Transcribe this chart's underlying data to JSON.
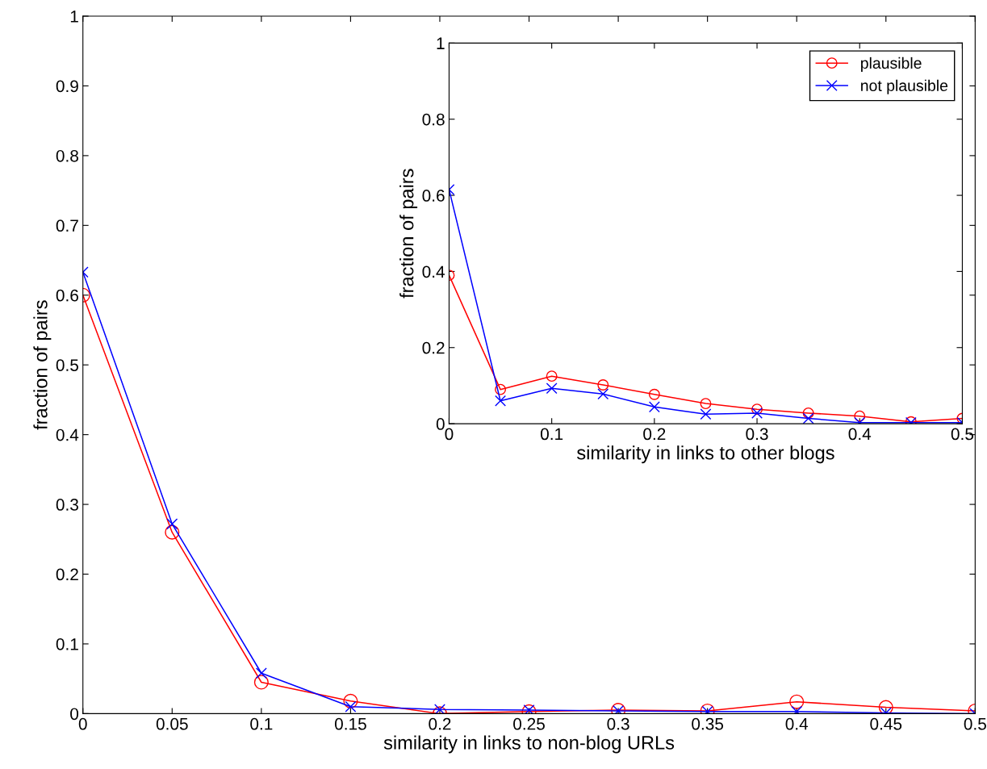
{
  "chart_data": [
    {
      "type": "line",
      "xlabel": "similarity in links to non-blog URLs",
      "ylabel": "fraction of pairs",
      "x": [
        0,
        0.05,
        0.1,
        0.15,
        0.2,
        0.25,
        0.3,
        0.35,
        0.4,
        0.45,
        0.5
      ],
      "series": [
        {
          "color": "#ff0000",
          "marker": "circle",
          "values": [
            0.6,
            0.26,
            0.045,
            0.018,
            0.0,
            0.003,
            0.005,
            0.004,
            0.017,
            0.009,
            0.004
          ]
        },
        {
          "color": "#0000ff",
          "marker": "cross",
          "values": [
            0.633,
            0.272,
            0.058,
            0.01,
            0.006,
            0.005,
            0.004,
            0.003,
            0.003,
            0.001,
            0.0
          ]
        }
      ],
      "xlim": [
        0,
        0.5
      ],
      "ylim": [
        0,
        1
      ],
      "xticks": [
        0,
        0.05,
        0.1,
        0.15,
        0.2,
        0.25,
        0.3,
        0.35,
        0.4,
        0.45,
        0.5
      ],
      "yticks": [
        0,
        0.1,
        0.2,
        0.3,
        0.4,
        0.5,
        0.6,
        0.7,
        0.8,
        0.9,
        1
      ],
      "grid": false,
      "legend": false,
      "line_style": "solid"
    },
    {
      "type": "line",
      "xlabel": "similarity in links to other blogs",
      "ylabel": "fraction of pairs",
      "x": [
        0,
        0.05,
        0.1,
        0.15,
        0.2,
        0.25,
        0.3,
        0.35,
        0.4,
        0.45,
        0.5
      ],
      "series": [
        {
          "name": "plausible",
          "color": "#ff0000",
          "marker": "circle",
          "values": [
            0.39,
            0.09,
            0.125,
            0.102,
            0.077,
            0.053,
            0.038,
            0.028,
            0.02,
            0.005,
            0.014
          ]
        },
        {
          "name": "not plausible",
          "color": "#0000ff",
          "marker": "cross",
          "values": [
            0.615,
            0.06,
            0.093,
            0.078,
            0.044,
            0.025,
            0.028,
            0.014,
            0.003,
            0.003,
            0.003
          ]
        }
      ],
      "xlim": [
        0,
        0.5
      ],
      "ylim": [
        0,
        1
      ],
      "xticks": [
        0,
        0.1,
        0.2,
        0.3,
        0.4,
        0.5
      ],
      "yticks": [
        0,
        0.2,
        0.4,
        0.6,
        0.8,
        1
      ],
      "grid": false,
      "legend": "top right",
      "line_style": "solid"
    }
  ]
}
